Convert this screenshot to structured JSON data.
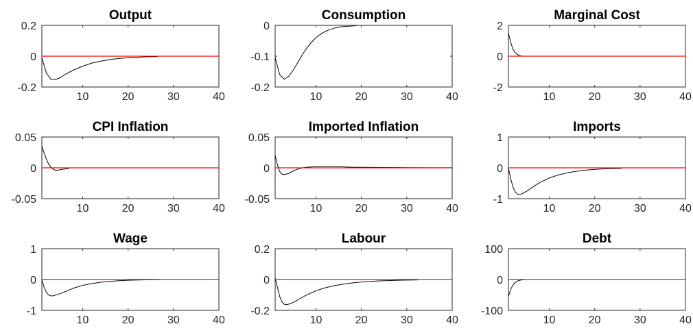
{
  "chart_data": [
    {
      "type": "line",
      "title": "Output",
      "xlim": [
        1,
        40
      ],
      "ylim": [
        -0.2,
        0.2
      ],
      "xticks": [
        10,
        20,
        30,
        40
      ],
      "yticks": [
        -0.2,
        0,
        0.2
      ],
      "ytick_labels": [
        "-0.2",
        "0",
        "0.2"
      ],
      "xtick_labels": [
        "10",
        "20",
        "30",
        "40"
      ],
      "series": [
        {
          "color": "#000000",
          "x": [
            1,
            2,
            3,
            4,
            5,
            6,
            8,
            10,
            12,
            14,
            16,
            18,
            20,
            22,
            24,
            26.5
          ],
          "values": [
            -0.01,
            -0.11,
            -0.15,
            -0.152,
            -0.14,
            -0.12,
            -0.09,
            -0.065,
            -0.045,
            -0.032,
            -0.022,
            -0.015,
            -0.01,
            -0.007,
            -0.004,
            -0.002
          ]
        },
        {
          "color": "#ff0000",
          "x": [
            1,
            40
          ],
          "values": [
            0,
            0
          ]
        }
      ]
    },
    {
      "type": "line",
      "title": "Consumption",
      "xlim": [
        1,
        40
      ],
      "ylim": [
        -0.2,
        0
      ],
      "xticks": [
        10,
        20,
        30,
        40
      ],
      "yticks": [
        -0.2,
        -0.1,
        0
      ],
      "ytick_labels": [
        "-0.2",
        "-0.1",
        "0"
      ],
      "xtick_labels": [
        "10",
        "20",
        "30",
        "40"
      ],
      "series": [
        {
          "color": "#000000",
          "x": [
            1,
            2,
            3,
            4,
            5,
            6,
            7,
            8,
            9,
            10,
            11,
            12,
            13,
            14,
            15,
            16,
            17,
            18,
            19
          ],
          "values": [
            -0.105,
            -0.16,
            -0.175,
            -0.165,
            -0.145,
            -0.12,
            -0.095,
            -0.073,
            -0.055,
            -0.04,
            -0.029,
            -0.02,
            -0.014,
            -0.009,
            -0.006,
            -0.004,
            -0.003,
            -0.002,
            -0.001
          ]
        },
        {
          "color": "#ff0000",
          "x": [
            1,
            40
          ],
          "values": [
            0,
            0
          ]
        }
      ]
    },
    {
      "type": "line",
      "title": "Marginal Cost",
      "xlim": [
        1,
        40
      ],
      "ylim": [
        -2,
        2
      ],
      "xticks": [
        10,
        20,
        30,
        40
      ],
      "yticks": [
        -2,
        0,
        2
      ],
      "ytick_labels": [
        "-2",
        "0",
        "2"
      ],
      "xtick_labels": [
        "10",
        "20",
        "30",
        "40"
      ],
      "series": [
        {
          "color": "#000000",
          "x": [
            1,
            1.5,
            2,
            2.5,
            3,
            3.5,
            4
          ],
          "values": [
            1.5,
            0.9,
            0.45,
            0.22,
            0.1,
            0.04,
            0.01
          ]
        },
        {
          "color": "#ff0000",
          "x": [
            1,
            40
          ],
          "values": [
            0,
            0
          ]
        }
      ]
    },
    {
      "type": "line",
      "title": "CPI Inflation",
      "xlim": [
        1,
        40
      ],
      "ylim": [
        -0.05,
        0.05
      ],
      "xticks": [
        10,
        20,
        30,
        40
      ],
      "yticks": [
        -0.05,
        0,
        0.05
      ],
      "ytick_labels": [
        "-0.05",
        "0",
        "0.05"
      ],
      "xtick_labels": [
        "10",
        "20",
        "30",
        "40"
      ],
      "series": [
        {
          "color": "#000000",
          "x": [
            1,
            1.5,
            2,
            2.5,
            3,
            3.5,
            4,
            4.5,
            5,
            6,
            7
          ],
          "values": [
            0.035,
            0.024,
            0.014,
            0.006,
            0.001,
            -0.002,
            -0.004,
            -0.004,
            -0.003,
            -0.002,
            -0.001
          ]
        },
        {
          "color": "#ff0000",
          "x": [
            1,
            40
          ],
          "values": [
            0,
            0
          ]
        }
      ]
    },
    {
      "type": "line",
      "title": "Imported Inflation",
      "xlim": [
        1,
        40
      ],
      "ylim": [
        -0.05,
        0.05
      ],
      "xticks": [
        10,
        20,
        30,
        40
      ],
      "yticks": [
        -0.05,
        0,
        0.05
      ],
      "ytick_labels": [
        "-0.05",
        "0",
        "0.05"
      ],
      "xtick_labels": [
        "10",
        "20",
        "30",
        "40"
      ],
      "series": [
        {
          "color": "#000000",
          "x": [
            1,
            1.5,
            2,
            2.5,
            3,
            4,
            5,
            6,
            7,
            8,
            10,
            12,
            14,
            16,
            18,
            20,
            25,
            30,
            35,
            40
          ],
          "values": [
            0.02,
            0.005,
            -0.006,
            -0.01,
            -0.011,
            -0.009,
            -0.005,
            -0.002,
            0.0,
            0.001,
            0.002,
            0.002,
            0.002,
            0.0015,
            0.001,
            0.0008,
            0.0005,
            0.0003,
            0.0002,
            0.0001
          ]
        },
        {
          "color": "#ff0000",
          "x": [
            1,
            40
          ],
          "values": [
            0,
            0
          ]
        }
      ]
    },
    {
      "type": "line",
      "title": "Imports",
      "xlim": [
        1,
        40
      ],
      "ylim": [
        -1,
        1
      ],
      "xticks": [
        10,
        20,
        30,
        40
      ],
      "yticks": [
        -1,
        0,
        1
      ],
      "ytick_labels": [
        "-1",
        "0",
        "1"
      ],
      "xtick_labels": [
        "10",
        "20",
        "30",
        "40"
      ],
      "series": [
        {
          "color": "#000000",
          "x": [
            1,
            1.5,
            2,
            2.5,
            3,
            3.5,
            4,
            5,
            6,
            7,
            8,
            10,
            12,
            14,
            16,
            18,
            20,
            22,
            24,
            26
          ],
          "values": [
            0,
            -0.35,
            -0.62,
            -0.78,
            -0.85,
            -0.86,
            -0.84,
            -0.76,
            -0.66,
            -0.56,
            -0.47,
            -0.33,
            -0.23,
            -0.16,
            -0.11,
            -0.075,
            -0.05,
            -0.034,
            -0.022,
            -0.015
          ]
        },
        {
          "color": "#ff0000",
          "x": [
            1,
            40
          ],
          "values": [
            0,
            0
          ]
        }
      ]
    },
    {
      "type": "line",
      "title": "Wage",
      "xlim": [
        1,
        40
      ],
      "ylim": [
        -1,
        1
      ],
      "xticks": [
        10,
        20,
        30,
        40
      ],
      "yticks": [
        -1,
        0,
        1
      ],
      "ytick_labels": [
        "-1",
        "0",
        "1"
      ],
      "xtick_labels": [
        "10",
        "20",
        "30",
        "40"
      ],
      "series": [
        {
          "color": "#000000",
          "x": [
            1,
            1.5,
            2,
            2.5,
            3,
            3.5,
            4,
            5,
            6,
            7,
            8,
            10,
            12,
            14,
            16,
            18,
            20,
            22,
            24,
            27
          ],
          "values": [
            0,
            -0.25,
            -0.42,
            -0.5,
            -0.53,
            -0.53,
            -0.51,
            -0.46,
            -0.4,
            -0.34,
            -0.28,
            -0.19,
            -0.13,
            -0.09,
            -0.06,
            -0.04,
            -0.026,
            -0.017,
            -0.011,
            -0.006
          ]
        },
        {
          "color": "#ff0000",
          "x": [
            1,
            40
          ],
          "values": [
            0,
            0
          ]
        }
      ]
    },
    {
      "type": "line",
      "title": "Labour",
      "xlim": [
        1,
        40
      ],
      "ylim": [
        -0.2,
        0.2
      ],
      "xticks": [
        10,
        20,
        30,
        40
      ],
      "yticks": [
        -0.2,
        0,
        0.2
      ],
      "ytick_labels": [
        "-0.2",
        "0",
        "0.2"
      ],
      "xtick_labels": [
        "10",
        "20",
        "30",
        "40"
      ],
      "series": [
        {
          "color": "#000000",
          "x": [
            1,
            1.5,
            2,
            2.5,
            3,
            3.5,
            4,
            5,
            6,
            7,
            8,
            10,
            12,
            14,
            16,
            18,
            20,
            22,
            24,
            26,
            28,
            30,
            32.5
          ],
          "values": [
            0.01,
            -0.05,
            -0.11,
            -0.145,
            -0.16,
            -0.163,
            -0.16,
            -0.148,
            -0.132,
            -0.115,
            -0.099,
            -0.073,
            -0.054,
            -0.04,
            -0.03,
            -0.022,
            -0.016,
            -0.012,
            -0.009,
            -0.007,
            -0.005,
            -0.004,
            -0.003
          ]
        },
        {
          "color": "#ff0000",
          "x": [
            1,
            40
          ],
          "values": [
            0,
            0
          ]
        }
      ]
    },
    {
      "type": "line",
      "title": "Debt",
      "xlim": [
        1,
        40
      ],
      "ylim": [
        -100,
        100
      ],
      "xticks": [
        10,
        20,
        30,
        40
      ],
      "yticks": [
        -100,
        0,
        100
      ],
      "ytick_labels": [
        "-100",
        "0",
        "100"
      ],
      "xtick_labels": [
        "10",
        "20",
        "30",
        "40"
      ],
      "series": [
        {
          "color": "#000000",
          "x": [
            1,
            1.5,
            2,
            2.5,
            3,
            3.5,
            4,
            4.5
          ],
          "values": [
            -55,
            -32,
            -18,
            -10,
            -5,
            -2.5,
            -1,
            -0.5
          ]
        },
        {
          "color": "#ff0000",
          "x": [
            1,
            40
          ],
          "values": [
            0,
            0
          ]
        }
      ]
    }
  ]
}
